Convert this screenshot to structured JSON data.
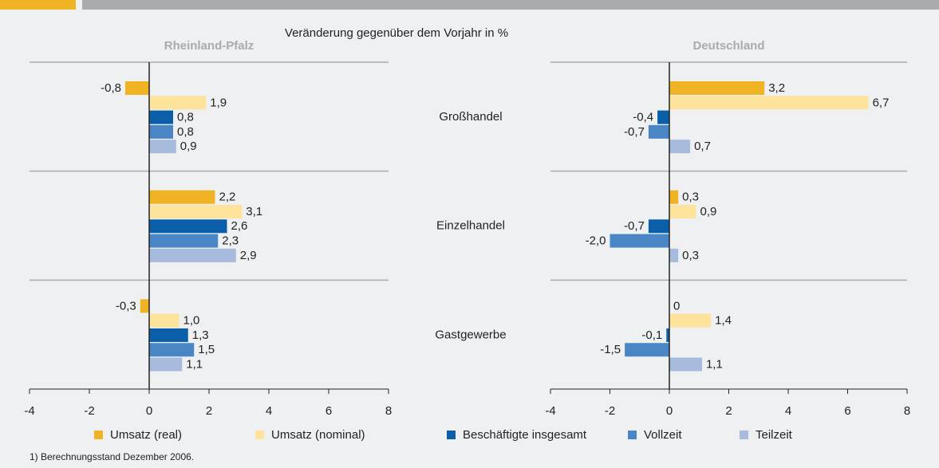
{
  "subtitle": "Veränderung gegenüber dem Vorjahr in %",
  "footnote": "1) Berechnungsstand Dezember 2006.",
  "chart_data": [
    {
      "type": "bar",
      "title": "Rheinland-Pfalz",
      "xlim": [
        -4,
        8
      ],
      "xticks": [
        -4,
        -2,
        0,
        2,
        4,
        6,
        8
      ],
      "series": [
        {
          "name": "Umsatz (real)",
          "color": "#f0b323",
          "values": [
            -0.8,
            2.2,
            -0.3
          ],
          "value_labels": [
            "-0,8",
            "2,2",
            "-0,3"
          ]
        },
        {
          "name": "Umsatz (nominal)",
          "color": "#fde39c",
          "values": [
            1.9,
            3.1,
            1.0
          ],
          "value_labels": [
            "1,9",
            "3,1",
            "1,0"
          ]
        },
        {
          "name": "Beschäftigte insgesamt",
          "color": "#0b5ea8",
          "values": [
            0.8,
            2.6,
            1.3
          ],
          "value_labels": [
            "0,8",
            "2,6",
            "1,3"
          ]
        },
        {
          "name": "Vollzeit",
          "color": "#4a86c5",
          "values": [
            0.8,
            2.3,
            1.5
          ],
          "value_labels": [
            "0,8",
            "2,3",
            "1,5"
          ]
        },
        {
          "name": "Teilzeit",
          "color": "#a7bbdd",
          "values": [
            0.9,
            2.9,
            1.1
          ],
          "value_labels": [
            "0,9",
            "2,9",
            "1,1"
          ]
        }
      ]
    },
    {
      "type": "bar",
      "title": "Deutschland",
      "xlim": [
        -4,
        8
      ],
      "xticks": [
        -4,
        -2,
        0,
        2,
        4,
        6,
        8
      ],
      "categories": [
        "Großhandel",
        "Einzelhandel",
        "Gastgewerbe"
      ],
      "series": [
        {
          "color": "#f0b323",
          "values": [
            3.2,
            0.3,
            0
          ],
          "value_labels": [
            "3,2",
            "0,3",
            "0"
          ]
        },
        {
          "color": "#fde39c",
          "values": [
            6.7,
            0.9,
            1.4
          ],
          "value_labels": [
            "6,7",
            "0,9",
            "1,4"
          ]
        },
        {
          "color": "#0b5ea8",
          "values": [
            -0.4,
            -0.7,
            -0.1
          ],
          "value_labels": [
            "-0,4",
            "-0,7",
            "-0,1"
          ]
        },
        {
          "color": "#4a86c5",
          "values": [
            -0.7,
            -2.0,
            -1.5
          ],
          "value_labels": [
            "-0,7",
            "-2,0",
            "-1,5"
          ]
        },
        {
          "color": "#a7bbdd",
          "values": [
            0.7,
            0.3,
            1.1
          ],
          "value_labels": [
            "0,7",
            "0,3",
            "1,1"
          ]
        }
      ]
    }
  ]
}
